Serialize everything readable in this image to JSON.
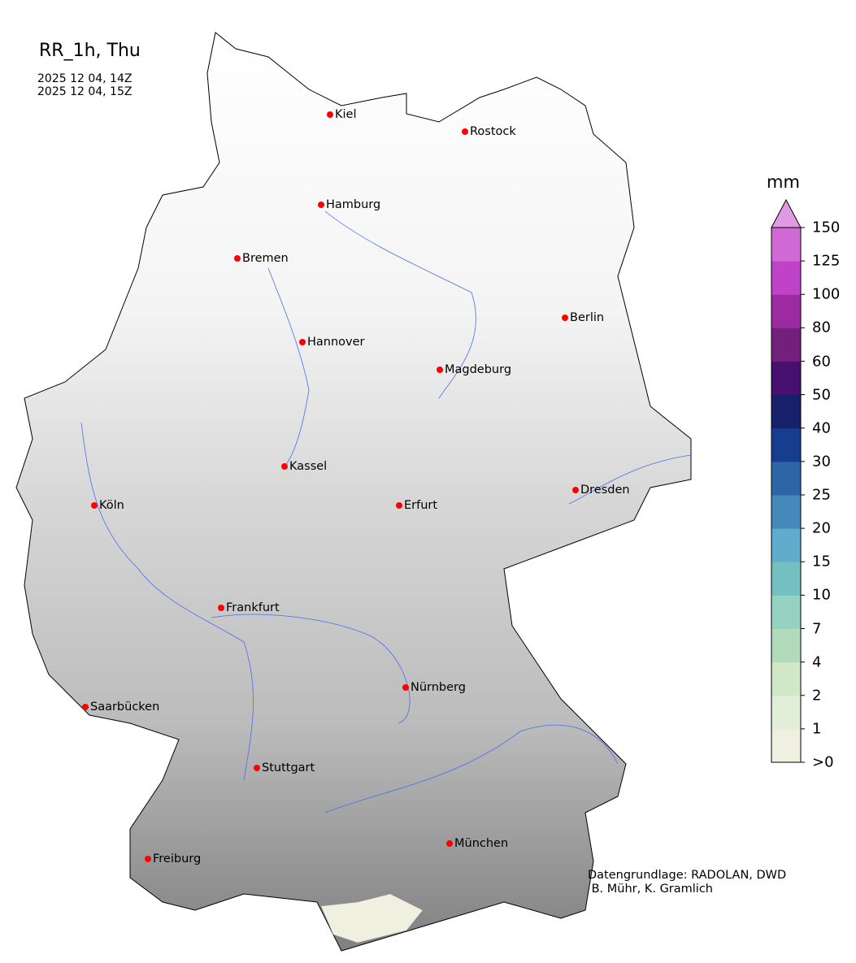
{
  "title": "RR_1h, Thu",
  "valid_from": "2025 12 04, 14Z",
  "valid_to": "2025 12 04, 15Z",
  "credit_line1": "Datengrundlage: RADOLAN, DWD",
  "credit_line2": " B. Mühr, K. Gramlich",
  "colorbar": {
    "unit": "mm",
    "ticks": [
      ">0",
      "1",
      "2",
      "4",
      "7",
      "10",
      "15",
      "20",
      "25",
      "30",
      "40",
      "50",
      "60",
      "80",
      "100",
      "125",
      "150"
    ],
    "colors": [
      "#f0f0e0",
      "#e2efd8",
      "#d0e8c8",
      "#b2dbbb",
      "#96d2c0",
      "#74bfbf",
      "#60accd",
      "#4589bb",
      "#2c66a6",
      "#173e8e",
      "#17216a",
      "#470f70",
      "#731f7c",
      "#9c2aa0",
      "#c042c8",
      "#d069d6"
    ],
    "extend_color": "#e09ae4"
  },
  "city_marker_color": "#ff0000",
  "cities": [
    {
      "name": "Kiel"
    },
    {
      "name": "Rostock"
    },
    {
      "name": "Hamburg"
    },
    {
      "name": "Bremen"
    },
    {
      "name": "Berlin"
    },
    {
      "name": "Hannover"
    },
    {
      "name": "Magdeburg"
    },
    {
      "name": "Kassel"
    },
    {
      "name": "Köln"
    },
    {
      "name": "Erfurt"
    },
    {
      "name": "Dresden"
    },
    {
      "name": "Frankfurt"
    },
    {
      "name": "Nürnberg"
    },
    {
      "name": "Saarbücken"
    },
    {
      "name": "Stuttgart"
    },
    {
      "name": "München"
    },
    {
      "name": "Freiburg"
    }
  ]
}
